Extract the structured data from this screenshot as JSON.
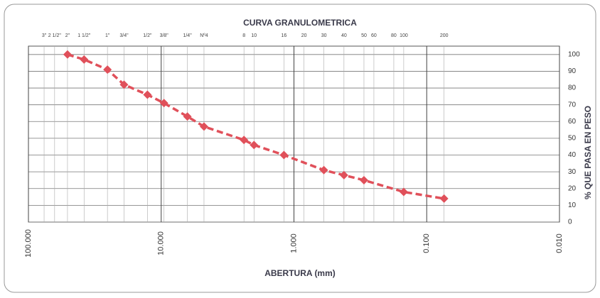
{
  "chart_data": {
    "type": "line",
    "title": "CURVA GRANULOMETRICA",
    "xlabel": "ABERTURA (mm)",
    "ylabel": "% QUE PASA EN PESO",
    "xscale": "log",
    "xreversed": true,
    "xlim": [
      100,
      0.01
    ],
    "xticks": [
      {
        "value": 100,
        "label": "100.000"
      },
      {
        "value": 10,
        "label": "10.000"
      },
      {
        "value": 1,
        "label": "1.000"
      },
      {
        "value": 0.1,
        "label": "0.100"
      },
      {
        "value": 0.01,
        "label": "0.010"
      }
    ],
    "x2ticks": [
      {
        "value": 76.2,
        "label": "3\""
      },
      {
        "value": 63.5,
        "label": "2 1/2\""
      },
      {
        "value": 50.8,
        "label": "2\""
      },
      {
        "value": 38.1,
        "label": "1 1/2\""
      },
      {
        "value": 25.4,
        "label": "1\""
      },
      {
        "value": 19.05,
        "label": "3/4\""
      },
      {
        "value": 12.7,
        "label": "1/2\""
      },
      {
        "value": 9.525,
        "label": "3/8\""
      },
      {
        "value": 6.35,
        "label": "1/4\""
      },
      {
        "value": 4.76,
        "label": "Nº4"
      },
      {
        "value": 2.38,
        "label": "8"
      },
      {
        "value": 2,
        "label": "10"
      },
      {
        "value": 1.19,
        "label": "16"
      },
      {
        "value": 0.84,
        "label": "20"
      },
      {
        "value": 0.595,
        "label": "30"
      },
      {
        "value": 0.42,
        "label": "40"
      },
      {
        "value": 0.297,
        "label": "50"
      },
      {
        "value": 0.25,
        "label": "60"
      },
      {
        "value": 0.177,
        "label": "80"
      },
      {
        "value": 0.149,
        "label": "100"
      },
      {
        "value": 0.074,
        "label": "200"
      }
    ],
    "ylim": [
      0,
      105
    ],
    "yticks": [
      0,
      10,
      20,
      30,
      40,
      50,
      60,
      70,
      80,
      90,
      100
    ],
    "grid": true,
    "x": [
      50.8,
      38.1,
      25.4,
      19.05,
      12.7,
      9.525,
      6.35,
      4.76,
      2.38,
      2,
      1.19,
      0.595,
      0.42,
      0.297,
      0.149,
      0.074
    ],
    "series": [
      {
        "color": "#e0505a",
        "values": [
          100,
          97,
          91,
          82,
          76,
          71,
          63,
          57,
          49,
          46,
          40,
          31,
          28,
          25,
          18,
          14
        ]
      }
    ]
  }
}
